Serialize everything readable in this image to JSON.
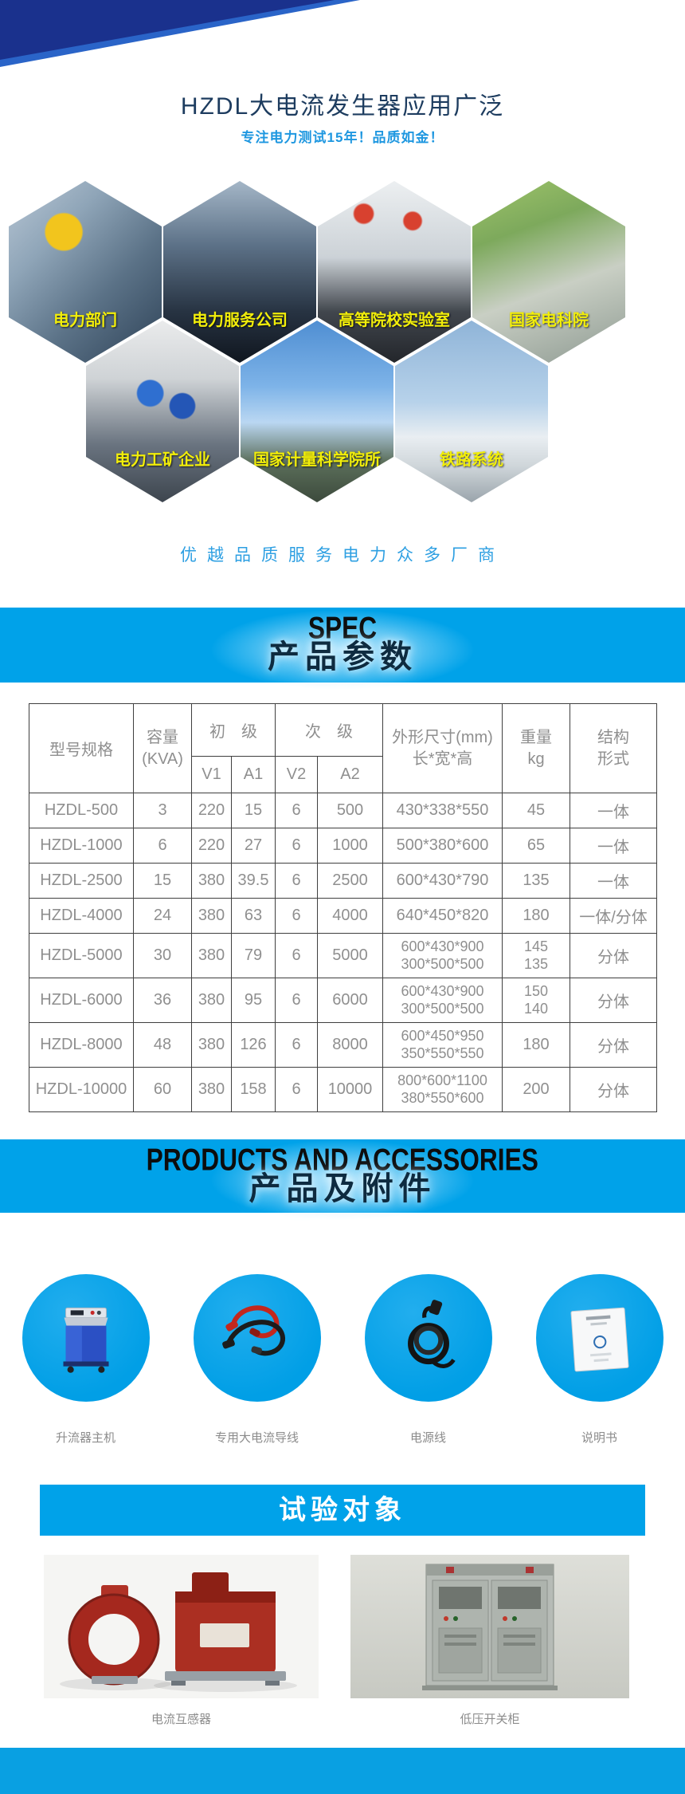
{
  "banner": {
    "title": "HZDL大电流发生器应用广泛",
    "subtitle": "专注电力测试15年！品质如金！"
  },
  "applications": {
    "tagline": "优越品质服务电力众多厂商",
    "items_row1": [
      {
        "label": "电力部门"
      },
      {
        "label": "电力服务公司"
      },
      {
        "label": "高等院校实验室"
      },
      {
        "label": "国家电科院"
      }
    ],
    "items_row2": [
      {
        "label": "电力工矿企业"
      },
      {
        "label": "国家计量科学院所"
      },
      {
        "label": "铁路系统"
      }
    ]
  },
  "spec_section": {
    "title_en": "SPEC",
    "title_cn": "产品参数"
  },
  "spec_table": {
    "headers": {
      "model": "型号规格",
      "capacity_l1": "容量",
      "capacity_l2": "(KVA)",
      "primary": "初　级",
      "secondary": "次　级",
      "v1": "V1",
      "a1": "A1",
      "v2": "V2",
      "a2": "A2",
      "dims_l1": "外形尺寸(mm)",
      "dims_l2": "长*宽*高",
      "weight_l1": "重量",
      "weight_l2": "kg",
      "form_l1": "结构",
      "form_l2": "形式"
    },
    "rows": [
      {
        "model": "HZDL-500",
        "kva": "3",
        "v1": "220",
        "a1": "15",
        "v2": "6",
        "a2": "500",
        "dims": [
          "430*338*550"
        ],
        "weight": [
          "45"
        ],
        "form": "一体"
      },
      {
        "model": "HZDL-1000",
        "kva": "6",
        "v1": "220",
        "a1": "27",
        "v2": "6",
        "a2": "1000",
        "dims": [
          "500*380*600"
        ],
        "weight": [
          "65"
        ],
        "form": "一体"
      },
      {
        "model": "HZDL-2500",
        "kva": "15",
        "v1": "380",
        "a1": "39.5",
        "v2": "6",
        "a2": "2500",
        "dims": [
          "600*430*790"
        ],
        "weight": [
          "135"
        ],
        "form": "一体"
      },
      {
        "model": "HZDL-4000",
        "kva": "24",
        "v1": "380",
        "a1": "63",
        "v2": "6",
        "a2": "4000",
        "dims": [
          "640*450*820"
        ],
        "weight": [
          "180"
        ],
        "form": "一体/分体"
      },
      {
        "model": "HZDL-5000",
        "kva": "30",
        "v1": "380",
        "a1": "79",
        "v2": "6",
        "a2": "5000",
        "dims": [
          "600*430*900",
          "300*500*500"
        ],
        "weight": [
          "145",
          "135"
        ],
        "form": "分体"
      },
      {
        "model": "HZDL-6000",
        "kva": "36",
        "v1": "380",
        "a1": "95",
        "v2": "6",
        "a2": "6000",
        "dims": [
          "600*430*900",
          "300*500*500"
        ],
        "weight": [
          "150",
          "140"
        ],
        "form": "分体"
      },
      {
        "model": "HZDL-8000",
        "kva": "48",
        "v1": "380",
        "a1": "126",
        "v2": "6",
        "a2": "8000",
        "dims": [
          "600*450*950",
          "350*550*550"
        ],
        "weight": [
          "180"
        ],
        "form": "分体"
      },
      {
        "model": "HZDL-10000",
        "kva": "60",
        "v1": "380",
        "a1": "158",
        "v2": "6",
        "a2": "10000",
        "dims": [
          "800*600*1100",
          "380*550*600"
        ],
        "weight": [
          "200"
        ],
        "form": "分体"
      }
    ]
  },
  "products_section": {
    "title_en": "PRODUCTS AND ACCESSORIES",
    "title_cn": "产品及附件",
    "items": [
      {
        "label": "升流器主机"
      },
      {
        "label": "专用大电流导线"
      },
      {
        "label": "电源线"
      },
      {
        "label": "说明书"
      }
    ]
  },
  "test_section": {
    "title": "试验对象",
    "items": [
      {
        "label": "电流互感器"
      },
      {
        "label": "低压开关柜"
      }
    ]
  },
  "colors": {
    "accent_blue": "#00a2e9",
    "banner_navy": "#1a318d",
    "title_navy": "#1d3c5f",
    "light_blue_text": "#1e97e0",
    "hex_label_yellow": "#f2ee0a"
  }
}
